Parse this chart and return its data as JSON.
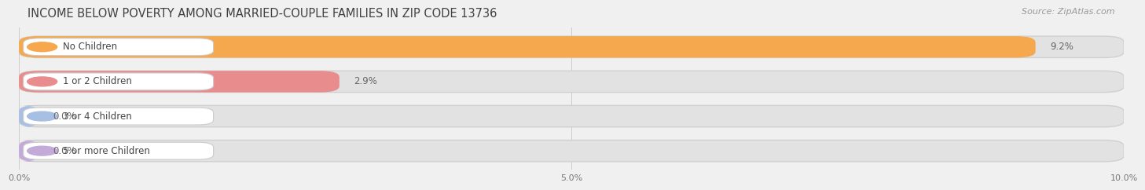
{
  "title": "INCOME BELOW POVERTY AMONG MARRIED-COUPLE FAMILIES IN ZIP CODE 13736",
  "source": "Source: ZipAtlas.com",
  "categories": [
    "No Children",
    "1 or 2 Children",
    "3 or 4 Children",
    "5 or more Children"
  ],
  "values": [
    9.2,
    2.9,
    0.0,
    0.0
  ],
  "bar_colors": [
    "#F5A84E",
    "#E88C8E",
    "#A8BFE4",
    "#C4AAD8"
  ],
  "value_labels": [
    "9.2%",
    "2.9%",
    "0.0%",
    "0.0%"
  ],
  "xlim": [
    0,
    10.0
  ],
  "xticks": [
    0.0,
    5.0,
    10.0
  ],
  "xticklabels": [
    "0.0%",
    "5.0%",
    "10.0%"
  ],
  "background_color": "#f0f0f0",
  "bar_bg_color": "#e2e2e2",
  "bar_bg_edge_color": "#d0d0d0",
  "title_fontsize": 10.5,
  "source_fontsize": 8,
  "label_fontsize": 8.5,
  "value_fontsize": 8.5,
  "tick_fontsize": 8,
  "fig_width": 14.06,
  "fig_height": 2.32
}
